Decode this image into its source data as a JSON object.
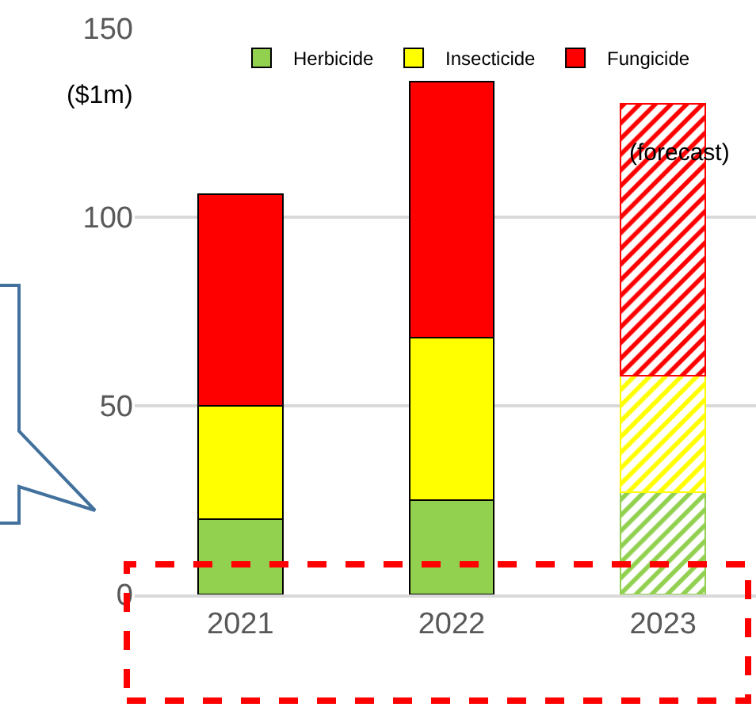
{
  "chart_data": {
    "type": "bar",
    "stacked": true,
    "ylabel": "($1m)",
    "categories": [
      "2021",
      "2022",
      "2023"
    ],
    "series": [
      {
        "name": "Herbicide",
        "color": "#92d050",
        "values": [
          20,
          25,
          27
        ]
      },
      {
        "name": "Insecticide",
        "color": "#ffff00",
        "values": [
          30,
          43,
          31
        ]
      },
      {
        "name": "Fungicide",
        "color": "#ff0000",
        "values": [
          56,
          68,
          72
        ]
      }
    ],
    "annotations": [
      {
        "text": "(forecast)",
        "x": "2023",
        "y": 130
      }
    ],
    "ylim": [
      0,
      150
    ],
    "yticks": [
      0,
      50,
      100,
      150
    ],
    "grid": "y",
    "legend": "top"
  }
}
